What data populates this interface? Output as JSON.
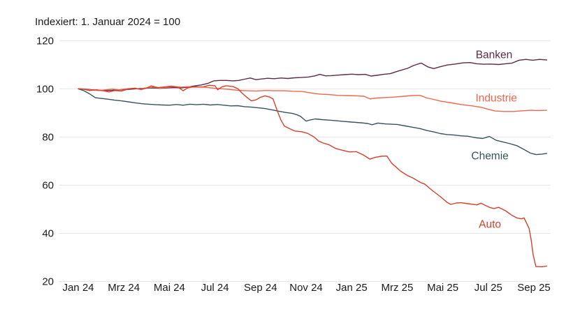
{
  "chart": {
    "title": "Indexiert: 1. Januar 2024 = 100"
  },
  "chart_data": {
    "type": "line",
    "title": "Indexiert: 1. Januar 2024 = 100",
    "x_unit": "months since Jan 2024",
    "xlim": [
      0,
      20.56
    ],
    "ylim": [
      20,
      120
    ],
    "grid": "horizontal",
    "legend_position": "inline-labels-right",
    "colors": {
      "grid": "#e6e6e6",
      "text": "#1a1a1a",
      "title": "#1a1a1a"
    },
    "x_ticks": [
      {
        "m": 0,
        "label": "Jan 24"
      },
      {
        "m": 2,
        "label": "Mrz 24"
      },
      {
        "m": 4,
        "label": "Mai 24"
      },
      {
        "m": 6,
        "label": "Jul 24"
      },
      {
        "m": 8,
        "label": "Sep 24"
      },
      {
        "m": 10,
        "label": "Nov 24"
      },
      {
        "m": 12,
        "label": "Jan 25"
      },
      {
        "m": 14,
        "label": "Mrz 25"
      },
      {
        "m": 16,
        "label": "Mai 25"
      },
      {
        "m": 18,
        "label": "Jul 25"
      },
      {
        "m": 20,
        "label": "Sep 25"
      }
    ],
    "y_ticks": [
      20,
      40,
      60,
      80,
      100,
      120
    ],
    "series": [
      {
        "name": "Banken",
        "color": "#5d2a46",
        "label_pos": {
          "m": 18.25,
          "v": 114.3
        },
        "points": [
          [
            0,
            100
          ],
          [
            0.3,
            99.9
          ],
          [
            0.6,
            99.6
          ],
          [
            0.9,
            99.4
          ],
          [
            1.2,
            99.3
          ],
          [
            1.5,
            99.4
          ],
          [
            1.8,
            99.6
          ],
          [
            2.1,
            99.7
          ],
          [
            2.4,
            99.9
          ],
          [
            2.7,
            100.1
          ],
          [
            3.0,
            100.3
          ],
          [
            3.3,
            100.4
          ],
          [
            3.6,
            100.2
          ],
          [
            3.9,
            100.4
          ],
          [
            4.2,
            100.5
          ],
          [
            4.5,
            100.4
          ],
          [
            4.8,
            100.7
          ],
          [
            5.1,
            101.2
          ],
          [
            5.4,
            101.6
          ],
          [
            5.7,
            102.3
          ],
          [
            5.95,
            103.3
          ],
          [
            6.2,
            103.5
          ],
          [
            6.5,
            103.5
          ],
          [
            6.8,
            103.3
          ],
          [
            7.05,
            103.5
          ],
          [
            7.3,
            104.0
          ],
          [
            7.55,
            104.5
          ],
          [
            7.8,
            103.8
          ],
          [
            8.05,
            104.1
          ],
          [
            8.3,
            104.4
          ],
          [
            8.6,
            104.2
          ],
          [
            8.9,
            104.5
          ],
          [
            9.2,
            104.3
          ],
          [
            9.5,
            104.6
          ],
          [
            9.8,
            104.7
          ],
          [
            10.1,
            104.9
          ],
          [
            10.4,
            105.4
          ],
          [
            10.6,
            106.0
          ],
          [
            10.85,
            105.4
          ],
          [
            11.1,
            105.5
          ],
          [
            11.4,
            105.7
          ],
          [
            11.7,
            105.9
          ],
          [
            12.0,
            106.1
          ],
          [
            12.3,
            105.9
          ],
          [
            12.6,
            106.0
          ],
          [
            12.85,
            105.3
          ],
          [
            13.1,
            105.6
          ],
          [
            13.4,
            106.0
          ],
          [
            13.7,
            106.3
          ],
          [
            14.05,
            107.4
          ],
          [
            14.45,
            108.5
          ],
          [
            14.75,
            109.8
          ],
          [
            15.05,
            110.7
          ],
          [
            15.35,
            109.1
          ],
          [
            15.6,
            108.4
          ],
          [
            15.9,
            109.2
          ],
          [
            16.2,
            109.9
          ],
          [
            16.55,
            110.3
          ],
          [
            16.9,
            110.8
          ],
          [
            17.2,
            110.9
          ],
          [
            17.5,
            110.4
          ],
          [
            17.8,
            110.2
          ],
          [
            18.1,
            110.3
          ],
          [
            18.45,
            110.1
          ],
          [
            18.75,
            110.4
          ],
          [
            19.05,
            110.7
          ],
          [
            19.35,
            111.9
          ],
          [
            19.65,
            112.2
          ],
          [
            19.95,
            111.9
          ],
          [
            20.25,
            112.2
          ],
          [
            20.56,
            112.0
          ]
        ]
      },
      {
        "name": "Industrie",
        "color": "#f1654d",
        "label_pos": {
          "m": 18.35,
          "v": 96.3
        },
        "points": [
          [
            0,
            100
          ],
          [
            0.3,
            99.8
          ],
          [
            0.6,
            99.5
          ],
          [
            0.9,
            99.3
          ],
          [
            1.2,
            99.6
          ],
          [
            1.5,
            99.9
          ],
          [
            1.8,
            99.6
          ],
          [
            2.1,
            100.0
          ],
          [
            2.4,
            100.2
          ],
          [
            2.7,
            99.9
          ],
          [
            3.0,
            100.4
          ],
          [
            3.3,
            100.7
          ],
          [
            3.6,
            100.3
          ],
          [
            3.9,
            100.6
          ],
          [
            4.2,
            101.0
          ],
          [
            4.5,
            100.7
          ],
          [
            4.8,
            100.9
          ],
          [
            5.1,
            100.7
          ],
          [
            5.4,
            100.8
          ],
          [
            5.7,
            100.5
          ],
          [
            6.0,
            100.2
          ],
          [
            6.3,
            100.0
          ],
          [
            6.6,
            99.8
          ],
          [
            7.0,
            99.4
          ],
          [
            7.4,
            99.2
          ],
          [
            7.8,
            99.1
          ],
          [
            8.2,
            99.3
          ],
          [
            8.6,
            99.2
          ],
          [
            9.0,
            99.2
          ],
          [
            9.4,
            99.0
          ],
          [
            9.8,
            98.9
          ],
          [
            10.2,
            98.3
          ],
          [
            10.6,
            97.8
          ],
          [
            11.0,
            97.6
          ],
          [
            11.4,
            97.3
          ],
          [
            11.8,
            97.2
          ],
          [
            12.2,
            97.1
          ],
          [
            12.55,
            96.9
          ],
          [
            12.8,
            95.8
          ],
          [
            13.1,
            96.2
          ],
          [
            13.5,
            96.4
          ],
          [
            13.9,
            96.6
          ],
          [
            14.3,
            96.9
          ],
          [
            14.7,
            97.2
          ],
          [
            15.0,
            97.3
          ],
          [
            15.3,
            96.2
          ],
          [
            15.6,
            95.6
          ],
          [
            15.9,
            94.9
          ],
          [
            16.3,
            94.3
          ],
          [
            16.8,
            93.5
          ],
          [
            17.3,
            92.9
          ],
          [
            17.7,
            92.3
          ],
          [
            18.0,
            91.5
          ],
          [
            18.3,
            90.8
          ],
          [
            18.7,
            90.6
          ],
          [
            19.1,
            90.6
          ],
          [
            19.5,
            90.9
          ],
          [
            19.9,
            91.1
          ],
          [
            20.2,
            91.0
          ],
          [
            20.56,
            91.1
          ]
        ]
      },
      {
        "name": "Chemie",
        "color": "#37535b",
        "label_pos": {
          "m": 18.07,
          "v": 72.3
        },
        "points": [
          [
            0,
            100
          ],
          [
            0.25,
            99.2
          ],
          [
            0.5,
            97.9
          ],
          [
            0.75,
            96.3
          ],
          [
            1.0,
            96.0
          ],
          [
            1.3,
            95.7
          ],
          [
            1.6,
            95.3
          ],
          [
            1.9,
            95.0
          ],
          [
            2.2,
            94.6
          ],
          [
            2.5,
            94.2
          ],
          [
            2.8,
            93.8
          ],
          [
            3.1,
            93.6
          ],
          [
            3.4,
            93.4
          ],
          [
            3.7,
            93.3
          ],
          [
            4.0,
            93.2
          ],
          [
            4.3,
            93.5
          ],
          [
            4.6,
            93.2
          ],
          [
            4.9,
            93.6
          ],
          [
            5.2,
            93.4
          ],
          [
            5.5,
            93.6
          ],
          [
            5.8,
            93.3
          ],
          [
            6.1,
            93.5
          ],
          [
            6.4,
            93.2
          ],
          [
            6.7,
            92.9
          ],
          [
            7.0,
            93.0
          ],
          [
            7.3,
            92.6
          ],
          [
            7.6,
            92.4
          ],
          [
            7.9,
            92.1
          ],
          [
            8.2,
            91.8
          ],
          [
            8.5,
            91.3
          ],
          [
            8.8,
            90.7
          ],
          [
            9.1,
            90.2
          ],
          [
            9.4,
            89.8
          ],
          [
            9.6,
            89.2
          ],
          [
            9.75,
            88.6
          ],
          [
            10.0,
            86.6
          ],
          [
            10.15,
            87.0
          ],
          [
            10.4,
            87.5
          ],
          [
            10.7,
            87.2
          ],
          [
            11.0,
            87.0
          ],
          [
            11.3,
            86.8
          ],
          [
            11.6,
            86.5
          ],
          [
            12.0,
            86.2
          ],
          [
            12.4,
            85.9
          ],
          [
            12.7,
            85.6
          ],
          [
            12.9,
            85.1
          ],
          [
            13.15,
            85.8
          ],
          [
            13.5,
            85.4
          ],
          [
            14.0,
            85.2
          ],
          [
            14.35,
            84.6
          ],
          [
            14.7,
            84.0
          ],
          [
            15.0,
            83.5
          ],
          [
            15.3,
            82.7
          ],
          [
            15.6,
            82.1
          ],
          [
            15.9,
            81.4
          ],
          [
            16.2,
            81.0
          ],
          [
            16.5,
            80.8
          ],
          [
            16.8,
            80.5
          ],
          [
            17.1,
            80.3
          ],
          [
            17.45,
            79.7
          ],
          [
            17.75,
            79.4
          ],
          [
            18.05,
            80.2
          ],
          [
            18.35,
            78.6
          ],
          [
            18.65,
            77.9
          ],
          [
            18.95,
            77.2
          ],
          [
            19.25,
            76.4
          ],
          [
            19.55,
            74.9
          ],
          [
            19.85,
            73.3
          ],
          [
            20.1,
            72.7
          ],
          [
            20.35,
            72.9
          ],
          [
            20.56,
            73.2
          ]
        ]
      },
      {
        "name": "Auto",
        "color": "#d5402c",
        "label_pos": {
          "m": 18.07,
          "v": 43.9
        },
        "points": [
          [
            0,
            100
          ],
          [
            0.25,
            99.8
          ],
          [
            0.5,
            99.3
          ],
          [
            0.8,
            99.6
          ],
          [
            1.1,
            99.2
          ],
          [
            1.35,
            98.7
          ],
          [
            1.6,
            99.3
          ],
          [
            1.9,
            99.1
          ],
          [
            2.2,
            99.9
          ],
          [
            2.5,
            100.3
          ],
          [
            2.75,
            99.7
          ],
          [
            3.0,
            100.3
          ],
          [
            3.2,
            101.2
          ],
          [
            3.5,
            100.5
          ],
          [
            3.8,
            100.8
          ],
          [
            4.1,
            101.1
          ],
          [
            4.4,
            100.6
          ],
          [
            4.6,
            99.2
          ],
          [
            4.8,
            100.4
          ],
          [
            5.1,
            100.9
          ],
          [
            5.45,
            100.7
          ],
          [
            5.75,
            101.5
          ],
          [
            6.0,
            101.3
          ],
          [
            6.12,
            99.6
          ],
          [
            6.3,
            100.8
          ],
          [
            6.5,
            101.3
          ],
          [
            6.8,
            100.9
          ],
          [
            7.0,
            100.1
          ],
          [
            7.2,
            98.1
          ],
          [
            7.45,
            96.1
          ],
          [
            7.6,
            95.0
          ],
          [
            7.8,
            95.4
          ],
          [
            8.0,
            96.5
          ],
          [
            8.2,
            97.1
          ],
          [
            8.4,
            96.6
          ],
          [
            8.55,
            95.8
          ],
          [
            8.74,
            90.8
          ],
          [
            8.9,
            87.0
          ],
          [
            9.05,
            84.5
          ],
          [
            9.2,
            83.8
          ],
          [
            9.5,
            82.5
          ],
          [
            9.8,
            82.2
          ],
          [
            10.07,
            81.5
          ],
          [
            10.35,
            80.0
          ],
          [
            10.55,
            78.3
          ],
          [
            10.75,
            77.5
          ],
          [
            11.0,
            76.8
          ],
          [
            11.3,
            75.2
          ],
          [
            11.6,
            74.5
          ],
          [
            11.9,
            73.8
          ],
          [
            12.2,
            73.9
          ],
          [
            12.5,
            72.6
          ],
          [
            12.8,
            70.8
          ],
          [
            13.05,
            71.6
          ],
          [
            13.3,
            72.0
          ],
          [
            13.55,
            72.1
          ],
          [
            13.75,
            69.2
          ],
          [
            14.15,
            65.8
          ],
          [
            14.45,
            64.0
          ],
          [
            14.7,
            62.9
          ],
          [
            15.05,
            61.0
          ],
          [
            15.2,
            60.5
          ],
          [
            15.5,
            58.1
          ],
          [
            15.9,
            55.2
          ],
          [
            16.2,
            52.8
          ],
          [
            16.35,
            52.0
          ],
          [
            16.6,
            52.6
          ],
          [
            16.8,
            52.7
          ],
          [
            17.1,
            52.3
          ],
          [
            17.5,
            51.8
          ],
          [
            17.67,
            52.5
          ],
          [
            18.05,
            50.8
          ],
          [
            18.25,
            50.3
          ],
          [
            18.45,
            50.8
          ],
          [
            18.75,
            49.4
          ],
          [
            19.05,
            47.4
          ],
          [
            19.25,
            46.4
          ],
          [
            19.45,
            46.0
          ],
          [
            19.57,
            46.4
          ],
          [
            19.79,
            42.0
          ],
          [
            19.88,
            37.3
          ],
          [
            19.97,
            31.0
          ],
          [
            20.09,
            26.2
          ],
          [
            20.34,
            26.1
          ],
          [
            20.56,
            26.4
          ]
        ]
      }
    ]
  }
}
